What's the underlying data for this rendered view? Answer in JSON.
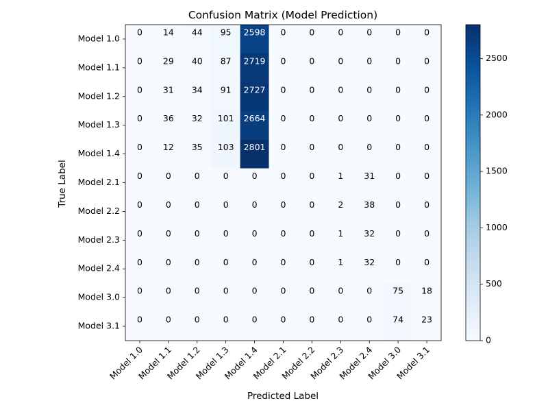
{
  "chart_data": {
    "type": "heatmap",
    "title": "Confusion Matrix (Model Prediction)",
    "xlabel": "Predicted Label",
    "ylabel": "True Label",
    "x_categories": [
      "Model 1.0",
      "Model 1.1",
      "Model 1.2",
      "Model 1.3",
      "Model 1.4",
      "Model 2.1",
      "Model 2.2",
      "Model 2.3",
      "Model 2.4",
      "Model 3.0",
      "Model 3.1"
    ],
    "y_categories": [
      "Model 1.0",
      "Model 1.1",
      "Model 1.2",
      "Model 1.3",
      "Model 1.4",
      "Model 2.1",
      "Model 2.2",
      "Model 2.3",
      "Model 2.4",
      "Model 3.0",
      "Model 3.1"
    ],
    "values": [
      [
        0,
        14,
        44,
        95,
        2598,
        0,
        0,
        0,
        0,
        0,
        0
      ],
      [
        0,
        29,
        40,
        87,
        2719,
        0,
        0,
        0,
        0,
        0,
        0
      ],
      [
        0,
        31,
        34,
        91,
        2727,
        0,
        0,
        0,
        0,
        0,
        0
      ],
      [
        0,
        36,
        32,
        101,
        2664,
        0,
        0,
        0,
        0,
        0,
        0
      ],
      [
        0,
        12,
        35,
        103,
        2801,
        0,
        0,
        0,
        0,
        0,
        0
      ],
      [
        0,
        0,
        0,
        0,
        0,
        0,
        0,
        1,
        31,
        0,
        0
      ],
      [
        0,
        0,
        0,
        0,
        0,
        0,
        0,
        2,
        38,
        0,
        0
      ],
      [
        0,
        0,
        0,
        0,
        0,
        0,
        0,
        1,
        32,
        0,
        0
      ],
      [
        0,
        0,
        0,
        0,
        0,
        0,
        0,
        1,
        32,
        0,
        0
      ],
      [
        0,
        0,
        0,
        0,
        0,
        0,
        0,
        0,
        0,
        75,
        18
      ],
      [
        0,
        0,
        0,
        0,
        0,
        0,
        0,
        0,
        0,
        74,
        23
      ]
    ],
    "colormap": "Blues",
    "color_min": 0,
    "color_max": 2801,
    "colorbar_ticks": [
      0,
      500,
      1000,
      1500,
      2000,
      2500
    ],
    "colorbar_tick_labels": [
      "0",
      "500",
      "1000",
      "1500",
      "2000",
      "2500"
    ],
    "grid": false,
    "legend": "colorbar-right"
  }
}
